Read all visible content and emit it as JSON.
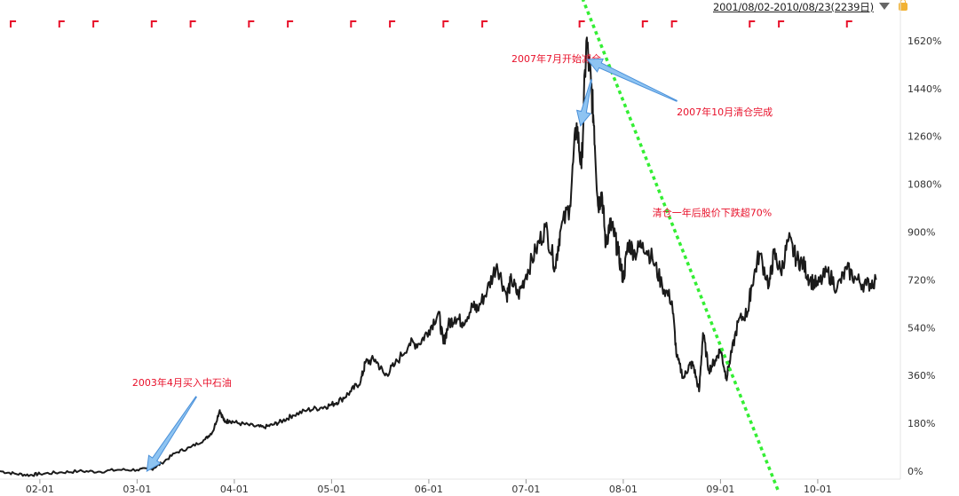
{
  "header": {
    "range_label": "2001/08/02-2010/08/23(2239日)",
    "dropdown_icon": "triangle-down-icon",
    "lock_icon": "lock-icon"
  },
  "colors": {
    "price_line": "#1a1a1a",
    "trend_line": "#33ee33",
    "annotation_text": "#e8102a",
    "arrow_fill": "#8ec4f2",
    "arrow_stroke": "#4a90d9",
    "event_marker": "#e8102a"
  },
  "chart_data": {
    "type": "line",
    "ylim": [
      -30,
      1700
    ],
    "ytick_values": [
      0,
      180,
      360,
      540,
      720,
      900,
      1080,
      1260,
      1440,
      1620
    ],
    "ytick_labels": [
      "0%",
      "180%",
      "360%",
      "540%",
      "720%",
      "900%",
      "1080%",
      "1260%",
      "1440%",
      "1620%"
    ],
    "xtick_labels": [
      "02-01",
      "03-01",
      "04-01",
      "05-01",
      "06-01",
      "07-01",
      "08-01",
      "09-01",
      "10-01"
    ],
    "xtick_values": [
      2002.0,
      2003.0,
      2004.0,
      2005.0,
      2006.0,
      2007.0,
      2008.0,
      2009.0,
      2010.0
    ],
    "xlim": [
      2001.59,
      2010.85
    ],
    "series": [
      {
        "x": [
          2001.59,
          2001.75,
          2001.9,
          2002.0,
          2002.2,
          2002.4,
          2002.6,
          2002.8,
          2003.0,
          2003.15,
          2003.25,
          2003.4,
          2003.55,
          2003.7,
          2003.78,
          2003.85,
          2003.9,
          2003.95,
          2004.05,
          2004.2,
          2004.3,
          2004.4,
          2004.5,
          2004.6,
          2004.75,
          2004.9,
          2005.0,
          2005.1,
          2005.2,
          2005.3,
          2005.35,
          2005.45,
          2005.55,
          2005.65,
          2005.8,
          2005.9,
          2006.0,
          2006.1,
          2006.15,
          2006.2,
          2006.27,
          2006.35,
          2006.45,
          2006.5,
          2006.6,
          2006.7,
          2006.8,
          2006.85,
          2006.92,
          2007.0,
          2007.1,
          2007.2,
          2007.3,
          2007.35,
          2007.45,
          2007.52,
          2007.57,
          2007.62,
          2007.67,
          2007.7,
          2007.74,
          2007.78,
          2007.82,
          2007.86,
          2007.9,
          2007.95,
          2008.0,
          2008.05,
          2008.12,
          2008.2,
          2008.3,
          2008.4,
          2008.5,
          2008.55,
          2008.62,
          2008.68,
          2008.72,
          2008.78,
          2008.82,
          2008.88,
          2008.95,
          2009.0,
          2009.06,
          2009.1,
          2009.18,
          2009.28,
          2009.32,
          2009.4,
          2009.5,
          2009.55,
          2009.62,
          2009.7,
          2009.78,
          2009.85,
          2009.92,
          2010.0,
          2010.1,
          2010.2,
          2010.3,
          2010.4,
          2010.5,
          2010.6
        ],
        "values": [
          0,
          -10,
          -15,
          -10,
          -5,
          0,
          -2,
          5,
          5,
          8,
          30,
          70,
          90,
          120,
          150,
          230,
          185,
          190,
          180,
          170,
          165,
          175,
          190,
          210,
          230,
          240,
          250,
          270,
          300,
          340,
          410,
          420,
          360,
          400,
          480,
          480,
          530,
          600,
          480,
          550,
          580,
          560,
          620,
          610,
          680,
          780,
          660,
          720,
          660,
          740,
          830,
          920,
          770,
          900,
          1000,
          1310,
          1140,
          1620,
          1450,
          1300,
          1000,
          1050,
          850,
          930,
          900,
          820,
          720,
          860,
          820,
          860,
          800,
          700,
          640,
          430,
          350,
          400,
          400,
          300,
          520,
          380,
          420,
          460,
          350,
          420,
          560,
          600,
          700,
          820,
          700,
          820,
          750,
          870,
          800,
          780,
          720,
          700,
          750,
          690,
          760,
          720,
          700,
          720
        ]
      }
    ],
    "trend_line": [
      [
        2007.58,
        1780
      ],
      [
        2009.6,
        -80
      ]
    ],
    "event_markers_x": [
      2001.7,
      2002.2,
      2002.55,
      2003.15,
      2003.55,
      2004.15,
      2004.55,
      2005.2,
      2005.6,
      2006.15,
      2006.55,
      2007.55,
      2008.2,
      2008.5,
      2009.3,
      2009.6,
      2010.3
    ],
    "annotations": [
      {
        "text": "2003年4月买入中石油",
        "x": 2002.95,
        "y": 320,
        "arrow_to": [
          2003.1,
          0
        ]
      },
      {
        "text": "2007年7月开始减仓",
        "x": 2006.85,
        "y": 1540,
        "arrow_to": [
          2007.56,
          1300
        ]
      },
      {
        "text": "2007年10月清仓完成",
        "x": 2008.55,
        "y": 1340,
        "arrow_to": [
          2007.63,
          1550
        ]
      },
      {
        "text": "清仓一年后股价下跌超70%",
        "x": 2008.3,
        "y": 960,
        "arrow_to": null
      }
    ]
  }
}
